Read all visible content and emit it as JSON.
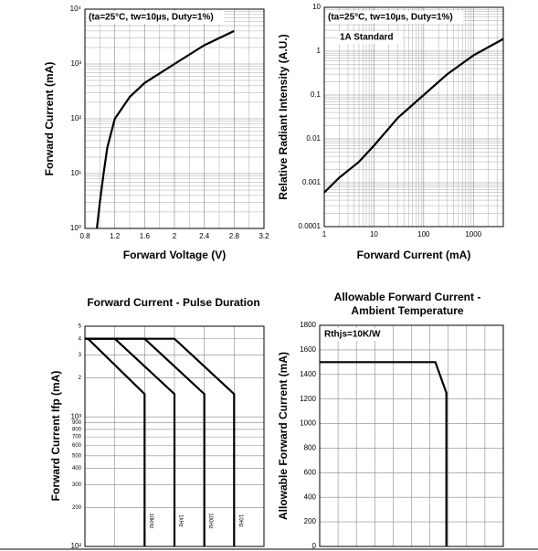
{
  "chart_data": [
    {
      "type": "line",
      "annotations": [
        "(ta=25°C, tw=10µs, Duty=1%)"
      ],
      "xlabel": "Forward Voltage (V)",
      "ylabel": "Forward Current (mA)",
      "xlim": [
        0.8,
        3.2
      ],
      "xticks": [
        0.8,
        1.2,
        1.6,
        2.0,
        2.4,
        2.8,
        3.2
      ],
      "ylim": [
        1,
        10000
      ],
      "ylog": true,
      "yticks": [
        {
          "value": 1,
          "label": "10⁰"
        },
        {
          "value": 10,
          "label": "10¹"
        },
        {
          "value": 100,
          "label": "10²"
        },
        {
          "value": 1000,
          "label": "10³"
        },
        {
          "value": 10000,
          "label": "10⁴"
        }
      ],
      "grid": true,
      "color": "#000000",
      "series": [
        {
          "x": [
            0.96,
            1.0,
            1.05,
            1.1,
            1.2,
            1.4,
            1.6,
            2.0,
            2.4,
            2.8
          ],
          "values": [
            1,
            3,
            10,
            30,
            100,
            250,
            450,
            1000,
            2200,
            4000
          ]
        }
      ]
    },
    {
      "type": "line",
      "annotations": [
        "(ta=25°C, tw=10µs, Duty=1%)",
        "1A Standard"
      ],
      "xlabel": "Forward Current (mA)",
      "ylabel": "Relative Radiant Intensity (A.U.)",
      "xlim": [
        1,
        4000
      ],
      "xlog": true,
      "xticks": [
        1,
        10,
        100,
        1000
      ],
      "ylim": [
        0.0001,
        10
      ],
      "ylog": true,
      "yticks": [
        0.0001,
        0.001,
        0.01,
        0.1,
        1,
        10
      ],
      "grid": true,
      "color": "#000000",
      "series": [
        {
          "x": [
            1,
            2,
            5,
            10,
            30,
            100,
            300,
            1000,
            4000
          ],
          "values": [
            0.0006,
            0.0013,
            0.003,
            0.007,
            0.03,
            0.1,
            0.3,
            0.8,
            1.9
          ]
        }
      ]
    },
    {
      "type": "line",
      "title": [
        "Forward Current - Pulse Duration"
      ],
      "ylabel": "Forward Current Ifp (mA)",
      "xlim": [
        0,
        6
      ],
      "ylim": [
        100,
        5000
      ],
      "ylog": true,
      "yticks": [
        {
          "value": 100,
          "label": "10²"
        },
        200,
        300,
        400,
        500,
        600,
        700,
        800,
        900,
        {
          "value": 1000,
          "label": "10³"
        },
        {
          "value": 2000,
          "label": "2"
        },
        {
          "value": 3000,
          "label": "3"
        },
        {
          "value": 4000,
          "label": "4"
        },
        {
          "value": 5000,
          "label": "5"
        }
      ],
      "grid": true,
      "color": "#000000",
      "series": [
        {
          "name": "10kHz",
          "x": [
            0,
            0.1,
            2,
            2
          ],
          "values": [
            4000,
            4000,
            1500,
            100
          ]
        },
        {
          "name": "1kHz",
          "x": [
            0,
            1,
            3,
            3
          ],
          "values": [
            4000,
            4000,
            1500,
            100
          ]
        },
        {
          "name": "100Hz",
          "x": [
            0,
            2,
            4,
            4
          ],
          "values": [
            4000,
            4000,
            1500,
            100
          ]
        },
        {
          "name": "10Hz",
          "x": [
            0,
            3,
            5,
            5
          ],
          "values": [
            4000,
            4000,
            1500,
            100
          ]
        }
      ]
    },
    {
      "type": "line",
      "title": [
        "Allowable Forward Current -",
        "Ambient Temperature"
      ],
      "annotations": [
        "Rthjs=10K/W"
      ],
      "ylabel": "Allowable Forward Current (mA)",
      "xlim": [
        0,
        10
      ],
      "ylim": [
        0,
        1800
      ],
      "yticks": [
        0,
        200,
        400,
        600,
        800,
        1000,
        1200,
        1400,
        1600,
        1800
      ],
      "grid": true,
      "color": "#000000",
      "series": [
        {
          "x": [
            0,
            6.3,
            6.9,
            6.9
          ],
          "values": [
            1500,
            1500,
            1250,
            0
          ]
        }
      ]
    }
  ]
}
